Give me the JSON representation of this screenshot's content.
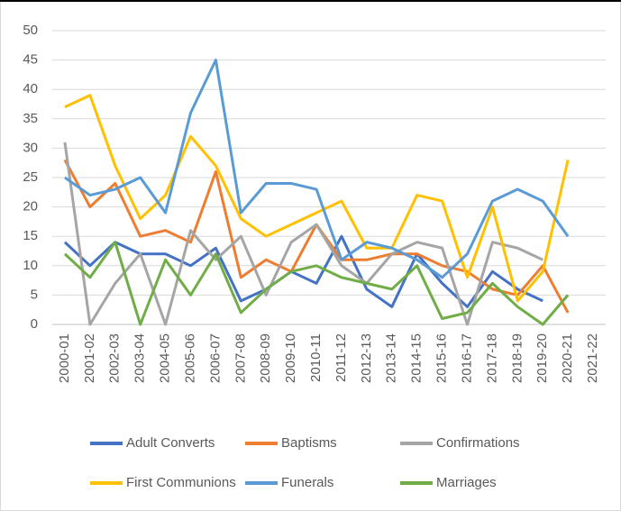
{
  "chart_data": {
    "type": "line",
    "categories": [
      "2000-01",
      "2001-02",
      "2002-03",
      "2003-04",
      "2004-05",
      "2005-06",
      "2006-07",
      "2007-08",
      "2008-09",
      "2009-10",
      "2010-11",
      "2011-12",
      "2012-13",
      "2013-14",
      "2014-15",
      "2015-16",
      "2016-17",
      "2017-18",
      "2018-19",
      "2019-20",
      "2020-21",
      "2021-22"
    ],
    "series": [
      {
        "name": "Adult Converts",
        "color": "#4472c4",
        "values": [
          14,
          10,
          14,
          12,
          12,
          10,
          13,
          4,
          6,
          9,
          7,
          15,
          6,
          3,
          12,
          7,
          3,
          9,
          6,
          4,
          null,
          null
        ]
      },
      {
        "name": "Baptisms",
        "color": "#ed7d31",
        "values": [
          28,
          20,
          24,
          15,
          16,
          14,
          26,
          8,
          11,
          9,
          17,
          11,
          11,
          12,
          12,
          10,
          9,
          6,
          5,
          10,
          2,
          null
        ]
      },
      {
        "name": "Confirmations",
        "color": "#a5a5a5",
        "values": [
          31,
          0,
          7,
          12,
          0,
          16,
          11,
          15,
          5,
          14,
          17,
          10,
          7,
          12,
          14,
          13,
          0,
          14,
          13,
          11,
          null,
          null
        ]
      },
      {
        "name": "First Communions",
        "color": "#ffc000",
        "values": [
          37,
          39,
          27,
          18,
          22,
          32,
          27,
          18,
          15,
          17,
          19,
          21,
          13,
          13,
          22,
          21,
          8,
          20,
          4,
          9,
          28,
          null
        ]
      },
      {
        "name": "Funerals",
        "color": "#5b9bd5",
        "values": [
          25,
          22,
          23,
          25,
          19,
          36,
          45,
          19,
          24,
          24,
          23,
          11,
          14,
          13,
          11,
          8,
          12,
          21,
          23,
          21,
          15,
          null
        ]
      },
      {
        "name": "Marriages",
        "color": "#70ad47",
        "values": [
          12,
          8,
          14,
          0,
          11,
          5,
          12,
          2,
          6,
          9,
          10,
          8,
          7,
          6,
          10,
          1,
          2,
          7,
          3,
          0,
          5,
          null
        ]
      }
    ],
    "ylim": [
      0,
      50
    ],
    "yticks": [
      0,
      5,
      10,
      15,
      20,
      25,
      30,
      35,
      40,
      45,
      50
    ],
    "grid": true,
    "legend": "bottom"
  }
}
